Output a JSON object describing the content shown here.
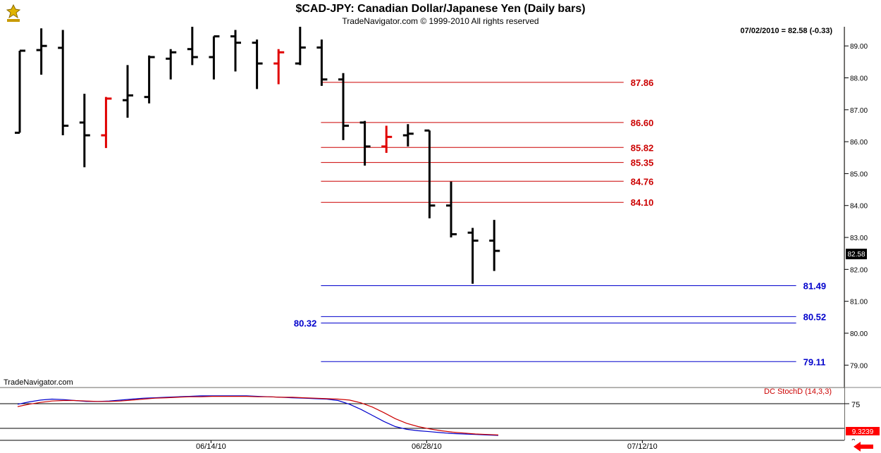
{
  "header": {
    "title": "$CAD-JPY:  Canadian Dollar/Japanese Yen  (Daily bars)",
    "subtitle": "TradeNavigator.com © 1999-2010 All rights reserved",
    "quote": "07/02/2010 = 82.58 (-0.33)",
    "watermark": "TradeNavigator.com",
    "last_price_tag": "82.58"
  },
  "indicator": {
    "label": "DC StochD (14,3,3)",
    "level_label": "75",
    "value_tag": "9.3239",
    "lines": [
      {
        "name": "",
        "color": "#0000cc",
        "values": [
          70,
          75,
          79,
          81,
          80,
          78,
          76,
          76,
          77,
          79,
          81,
          83,
          84,
          85,
          86,
          87,
          88,
          88,
          88,
          88,
          88,
          87,
          86,
          85,
          84,
          83,
          82,
          81,
          78,
          70,
          59,
          46,
          33,
          22,
          16,
          13,
          11,
          9,
          7,
          6,
          5,
          4,
          3
        ]
      },
      {
        "name": "",
        "color": "#cc0000",
        "values": [
          65,
          70,
          74,
          77,
          78,
          78,
          77,
          76,
          76,
          77,
          79,
          81,
          83,
          84,
          85,
          86,
          86,
          87,
          87,
          87,
          87,
          86,
          86,
          85,
          85,
          84,
          83,
          82,
          81,
          79,
          73,
          64,
          52,
          39,
          29,
          22,
          17,
          13,
          10,
          8,
          6,
          5,
          4
        ]
      }
    ]
  },
  "chart_data": {
    "type": "ohlc",
    "title": "$CAD-JPY:  Canadian Dollar/Japanese Yen  (Daily bars)",
    "ylim": [
      78.3,
      89.6
    ],
    "yticks": [
      "89.00",
      "88.00",
      "87.00",
      "86.00",
      "85.00",
      "84.00",
      "83.00",
      "82.00",
      "81.00",
      "80.00",
      "79.00"
    ],
    "xticks": [
      {
        "index": 9,
        "label": "06/14/10"
      },
      {
        "index": 19,
        "label": "06/28/10"
      },
      {
        "index": 29,
        "label": "07/12/10"
      }
    ],
    "bars": [
      {
        "o": 86.28,
        "h": 88.85,
        "l": 86.28,
        "c": 88.85,
        "color": "black"
      },
      {
        "o": 88.87,
        "h": 89.55,
        "l": 88.1,
        "c": 89.0,
        "color": "black"
      },
      {
        "o": 88.94,
        "h": 89.5,
        "l": 86.2,
        "c": 86.5,
        "color": "black"
      },
      {
        "o": 86.6,
        "h": 87.5,
        "l": 85.2,
        "c": 86.2,
        "color": "black"
      },
      {
        "o": 86.2,
        "h": 87.4,
        "l": 85.8,
        "c": 87.35,
        "color": "red"
      },
      {
        "o": 87.3,
        "h": 88.4,
        "l": 86.75,
        "c": 87.45,
        "color": "black"
      },
      {
        "o": 87.4,
        "h": 88.7,
        "l": 87.2,
        "c": 88.65,
        "color": "black"
      },
      {
        "o": 88.6,
        "h": 88.9,
        "l": 87.95,
        "c": 88.8,
        "color": "black"
      },
      {
        "o": 88.9,
        "h": 89.6,
        "l": 88.4,
        "c": 88.65,
        "color": "black"
      },
      {
        "o": 88.65,
        "h": 89.3,
        "l": 87.95,
        "c": 89.3,
        "color": "black"
      },
      {
        "o": 89.3,
        "h": 89.5,
        "l": 88.2,
        "c": 89.1,
        "color": "black"
      },
      {
        "o": 89.1,
        "h": 89.2,
        "l": 87.65,
        "c": 88.45,
        "color": "black"
      },
      {
        "o": 88.45,
        "h": 88.9,
        "l": 87.8,
        "c": 88.8,
        "color": "red"
      },
      {
        "o": 88.45,
        "h": 89.6,
        "l": 88.4,
        "c": 88.95,
        "color": "black"
      },
      {
        "o": 88.95,
        "h": 89.2,
        "l": 87.75,
        "c": 87.95,
        "color": "black"
      },
      {
        "o": 87.95,
        "h": 88.15,
        "l": 86.05,
        "c": 86.5,
        "color": "black"
      },
      {
        "o": 86.6,
        "h": 86.65,
        "l": 85.25,
        "c": 85.85,
        "color": "black"
      },
      {
        "o": 85.85,
        "h": 86.5,
        "l": 85.65,
        "c": 86.15,
        "color": "red"
      },
      {
        "o": 86.2,
        "h": 86.55,
        "l": 85.85,
        "c": 86.25,
        "color": "black"
      },
      {
        "o": 86.35,
        "h": 86.35,
        "l": 83.6,
        "c": 84.0,
        "color": "black"
      },
      {
        "o": 84.0,
        "h": 84.75,
        "l": 83.0,
        "c": 83.1,
        "color": "black"
      },
      {
        "o": 83.15,
        "h": 83.3,
        "l": 81.55,
        "c": 82.9,
        "color": "black"
      },
      {
        "o": 82.9,
        "h": 83.55,
        "l": 81.95,
        "c": 82.58,
        "color": "black"
      }
    ],
    "levels": [
      {
        "value": 87.86,
        "label": "87.86",
        "color": "#cc0000",
        "start_index": 14,
        "end_index": 28,
        "label_side": "right"
      },
      {
        "value": 86.6,
        "label": "86.60",
        "color": "#cc0000",
        "start_index": 14,
        "end_index": 28,
        "label_side": "right"
      },
      {
        "value": 85.82,
        "label": "85.82",
        "color": "#cc0000",
        "start_index": 14,
        "end_index": 28,
        "label_side": "right"
      },
      {
        "value": 85.35,
        "label": "85.35",
        "color": "#cc0000",
        "start_index": 14,
        "end_index": 28,
        "label_side": "right"
      },
      {
        "value": 84.76,
        "label": "84.76",
        "color": "#cc0000",
        "start_index": 14,
        "end_index": 28,
        "label_side": "right"
      },
      {
        "value": 84.1,
        "label": "84.10",
        "color": "#cc0000",
        "start_index": 14,
        "end_index": 28,
        "label_side": "right"
      },
      {
        "value": 81.49,
        "label": "81.49",
        "color": "#0000cc",
        "start_index": 14,
        "end_index": 36,
        "label_side": "right"
      },
      {
        "value": 80.52,
        "label": "80.52",
        "color": "#0000cc",
        "start_index": 14,
        "end_index": 36,
        "label_side": "right"
      },
      {
        "value": 80.32,
        "label": "80.32",
        "color": "#0000cc",
        "start_index": 14,
        "end_index": 36,
        "label_side": "left"
      },
      {
        "value": 79.11,
        "label": "79.11",
        "color": "#0000cc",
        "start_index": 14,
        "end_index": 36,
        "label_side": "right"
      }
    ]
  }
}
